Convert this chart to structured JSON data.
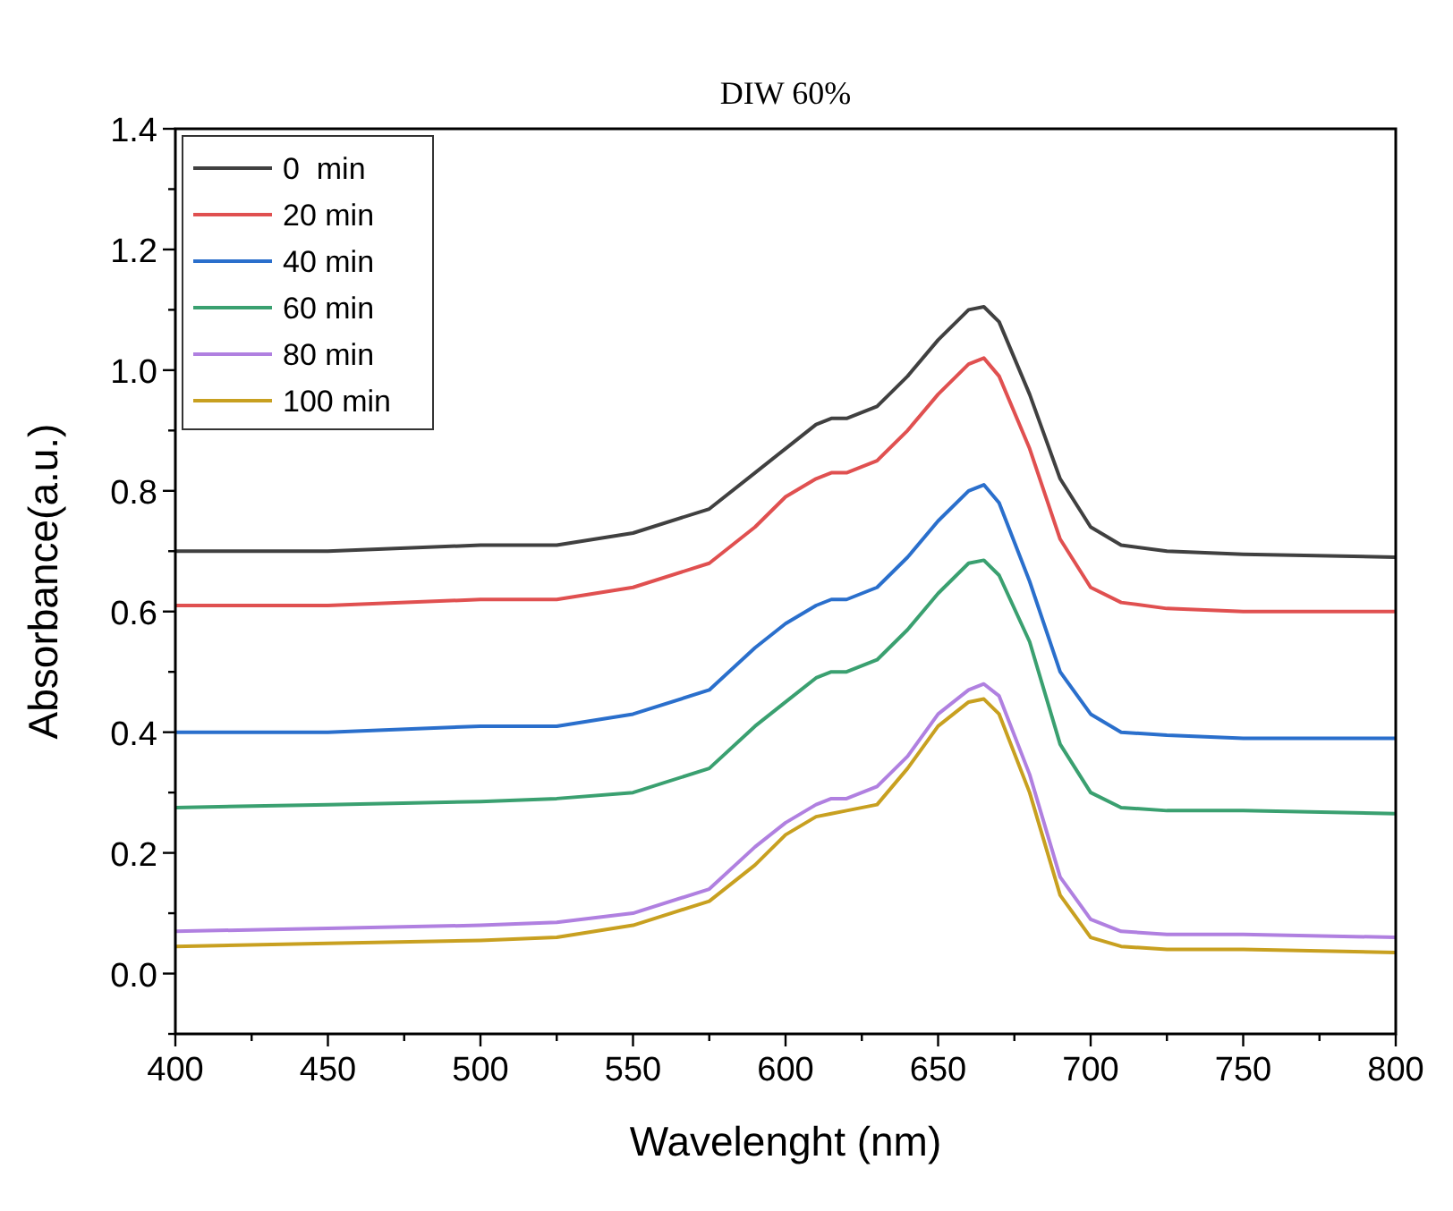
{
  "chart_data": {
    "type": "line",
    "title": "DIW 60%",
    "xlabel": "Wavelenght (nm)",
    "ylabel": "Absorbance(a.u.)",
    "x": [
      400,
      450,
      500,
      525,
      550,
      575,
      590,
      600,
      610,
      615,
      620,
      630,
      640,
      650,
      660,
      665,
      670,
      680,
      690,
      700,
      710,
      725,
      750,
      800
    ],
    "xlim": [
      400,
      800
    ],
    "ylim": [
      -0.1,
      1.4
    ],
    "xticks": [
      400,
      {
        "value": 425,
        "label": null
      },
      450,
      {
        "value": 475,
        "label": null
      },
      500,
      {
        "value": 525,
        "label": null
      },
      550,
      {
        "value": 575,
        "label": null
      },
      600,
      {
        "value": 625,
        "label": null
      },
      650,
      {
        "value": 675,
        "label": null
      },
      700,
      {
        "value": 725,
        "label": null
      },
      750,
      {
        "value": 775,
        "label": null
      },
      800
    ],
    "yticks": [
      {
        "value": -0.1,
        "label": null
      },
      {
        "value": 0,
        "label": "0.0"
      },
      {
        "value": 0.1,
        "label": null
      },
      0.2,
      {
        "value": 0.3,
        "label": null
      },
      0.4,
      {
        "value": 0.5,
        "label": null
      },
      0.6,
      {
        "value": 0.7,
        "label": null
      },
      0.8,
      {
        "value": 0.9,
        "label": null
      },
      {
        "value": 1,
        "label": "1.0"
      },
      {
        "value": 1.1,
        "label": null
      },
      1.2,
      {
        "value": 1.3,
        "label": null
      },
      1.4
    ],
    "grid": false,
    "legend": "top left",
    "line_style": "solid",
    "marker": "none",
    "series": [
      {
        "name": "0  min",
        "color": "#404040",
        "values": [
          0.7,
          0.7,
          0.71,
          0.71,
          0.73,
          0.77,
          0.83,
          0.87,
          0.91,
          0.92,
          0.92,
          0.94,
          0.99,
          1.05,
          1.1,
          1.105,
          1.08,
          0.96,
          0.82,
          0.74,
          0.71,
          0.7,
          0.695,
          0.69
        ]
      },
      {
        "name": "20 min",
        "color": "#e05050",
        "values": [
          0.61,
          0.61,
          0.62,
          0.62,
          0.64,
          0.68,
          0.74,
          0.79,
          0.82,
          0.83,
          0.83,
          0.85,
          0.9,
          0.96,
          1.01,
          1.02,
          0.99,
          0.87,
          0.72,
          0.64,
          0.615,
          0.605,
          0.6,
          0.6
        ]
      },
      {
        "name": "40 min",
        "color": "#2a6fcc",
        "values": [
          0.4,
          0.4,
          0.41,
          0.41,
          0.43,
          0.47,
          0.54,
          0.58,
          0.61,
          0.62,
          0.62,
          0.64,
          0.69,
          0.75,
          0.8,
          0.81,
          0.78,
          0.65,
          0.5,
          0.43,
          0.4,
          0.395,
          0.39,
          0.39
        ]
      },
      {
        "name": "60 min",
        "color": "#3aa070",
        "values": [
          0.275,
          0.28,
          0.285,
          0.29,
          0.3,
          0.34,
          0.41,
          0.45,
          0.49,
          0.5,
          0.5,
          0.52,
          0.57,
          0.63,
          0.68,
          0.685,
          0.66,
          0.55,
          0.38,
          0.3,
          0.275,
          0.27,
          0.27,
          0.265
        ]
      },
      {
        "name": "80 min",
        "color": "#b080e0",
        "values": [
          0.07,
          0.075,
          0.08,
          0.085,
          0.1,
          0.14,
          0.21,
          0.25,
          0.28,
          0.29,
          0.29,
          0.31,
          0.36,
          0.43,
          0.47,
          0.48,
          0.46,
          0.33,
          0.16,
          0.09,
          0.07,
          0.065,
          0.065,
          0.06
        ]
      },
      {
        "name": "100 min",
        "color": "#c8a020",
        "values": [
          0.045,
          0.05,
          0.055,
          0.06,
          0.08,
          0.12,
          0.18,
          0.23,
          0.26,
          0.265,
          0.27,
          0.28,
          0.34,
          0.41,
          0.45,
          0.455,
          0.43,
          0.3,
          0.13,
          0.06,
          0.045,
          0.04,
          0.04,
          0.035
        ]
      }
    ]
  }
}
